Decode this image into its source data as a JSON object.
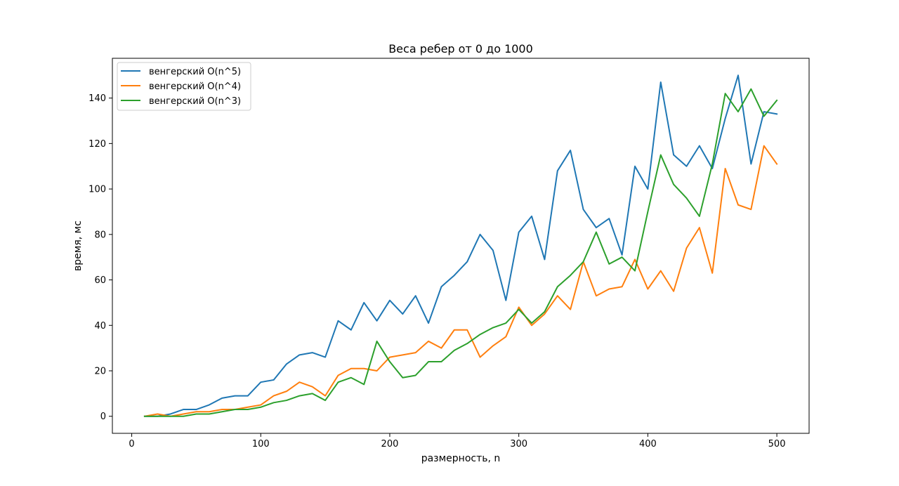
{
  "chart_data": {
    "type": "line",
    "title": "Веса ребер от 0 до 1000",
    "xlabel": "размерность, n",
    "ylabel": "время, мс",
    "xlim": [
      -15,
      525
    ],
    "ylim": [
      -7.5,
      157.5
    ],
    "xticks": [
      0,
      100,
      200,
      300,
      400,
      500
    ],
    "yticks": [
      0,
      20,
      40,
      60,
      80,
      100,
      120,
      140
    ],
    "grid": false,
    "legend_position": "upper left",
    "x": [
      10,
      20,
      30,
      40,
      50,
      60,
      70,
      80,
      90,
      100,
      110,
      120,
      130,
      140,
      150,
      160,
      170,
      180,
      190,
      200,
      210,
      220,
      230,
      240,
      250,
      260,
      270,
      280,
      290,
      300,
      310,
      320,
      330,
      340,
      350,
      360,
      370,
      380,
      390,
      400,
      410,
      420,
      430,
      440,
      450,
      460,
      470,
      480,
      490,
      500
    ],
    "series": [
      {
        "name": "венгерский O(n^5)",
        "color": "#1f77b4",
        "values": [
          0,
          0,
          1,
          3,
          3,
          5,
          8,
          9,
          9,
          15,
          16,
          23,
          27,
          28,
          26,
          42,
          38,
          50,
          42,
          51,
          45,
          53,
          41,
          57,
          62,
          68,
          80,
          73,
          51,
          81,
          88,
          69,
          108,
          117,
          91,
          83,
          87,
          71,
          110,
          100,
          147,
          115,
          110,
          119,
          109,
          131,
          150,
          111,
          134,
          133
        ]
      },
      {
        "name": "венгерский O(n^4)",
        "color": "#ff7f0e",
        "values": [
          0,
          1,
          0,
          1,
          2,
          2,
          3,
          3,
          4,
          5,
          9,
          11,
          15,
          13,
          9,
          18,
          21,
          21,
          20,
          26,
          27,
          28,
          33,
          30,
          38,
          38,
          26,
          31,
          35,
          48,
          40,
          45,
          53,
          47,
          68,
          53,
          56,
          57,
          69,
          56,
          64,
          55,
          74,
          83,
          63,
          109,
          93,
          91,
          119,
          111
        ]
      },
      {
        "name": "венгерский O(n^3)",
        "color": "#2ca02c",
        "values": [
          0,
          0,
          0,
          0,
          1,
          1,
          2,
          3,
          3,
          4,
          6,
          7,
          9,
          10,
          7,
          15,
          17,
          14,
          33,
          24,
          17,
          18,
          24,
          24,
          29,
          32,
          36,
          39,
          41,
          47,
          41,
          46,
          57,
          62,
          68,
          81,
          67,
          70,
          64,
          90,
          115,
          102,
          96,
          88,
          111,
          142,
          134,
          144,
          132,
          139
        ]
      }
    ]
  }
}
